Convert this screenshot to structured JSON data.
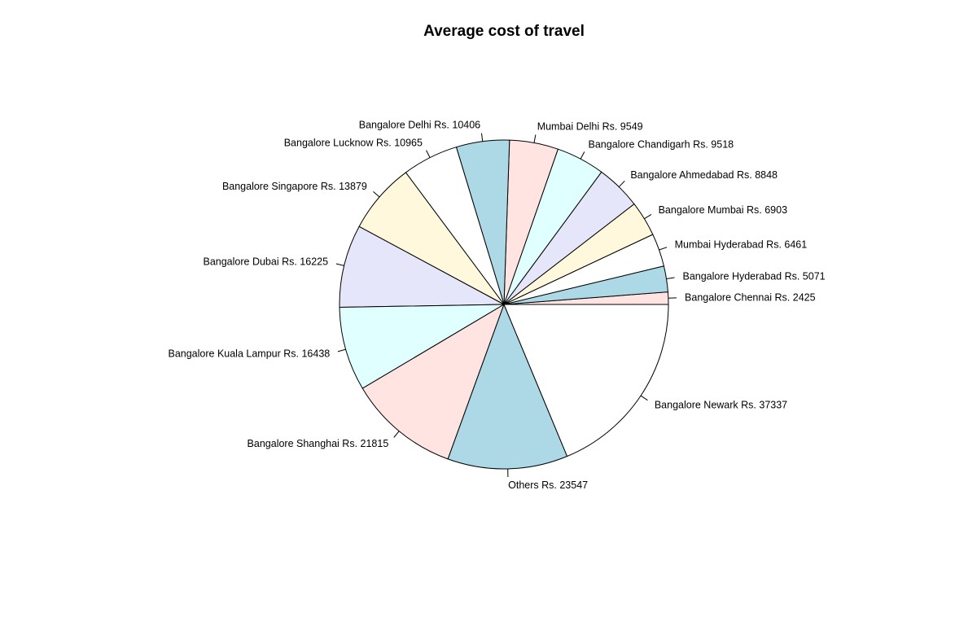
{
  "chart_data": {
    "type": "pie",
    "title": "Average cost of travel",
    "start": "3 o'clock",
    "direction": "counter-clockwise",
    "slices": [
      {
        "label": "Bangalore Chennai Rs. 2425",
        "category": "Bangalore Chennai",
        "value": 2425,
        "color": "#FFE4E1"
      },
      {
        "label": "Bangalore Hyderabad Rs. 5071",
        "category": "Bangalore Hyderabad",
        "value": 5071,
        "color": "#ADD8E6"
      },
      {
        "label": "Mumbai Hyderabad Rs. 6461",
        "category": "Mumbai Hyderabad",
        "value": 6461,
        "color": "#FFFFFF"
      },
      {
        "label": "Bangalore Mumbai Rs. 6903",
        "category": "Bangalore Mumbai",
        "value": 6903,
        "color": "#FFF8DC"
      },
      {
        "label": "Bangalore Ahmedabad Rs. 8848",
        "category": "Bangalore Ahmedabad",
        "value": 8848,
        "color": "#E6E6FA"
      },
      {
        "label": "Bangalore Chandigarh Rs. 9518",
        "category": "Bangalore Chandigarh",
        "value": 9518,
        "color": "#E0FFFF"
      },
      {
        "label": "Mumbai Delhi Rs. 9549",
        "category": "Mumbai Delhi",
        "value": 9549,
        "color": "#FFE4E1"
      },
      {
        "label": "Bangalore Delhi Rs. 10406",
        "category": "Bangalore Delhi",
        "value": 10406,
        "color": "#ADD8E6"
      },
      {
        "label": "Bangalore Lucknow Rs. 10965",
        "category": "Bangalore Lucknow",
        "value": 10965,
        "color": "#FFFFFF"
      },
      {
        "label": "Bangalore Singapore Rs. 13879",
        "category": "Bangalore Singapore",
        "value": 13879,
        "color": "#FFF8DC"
      },
      {
        "label": "Bangalore Dubai Rs. 16225",
        "category": "Bangalore Dubai",
        "value": 16225,
        "color": "#E6E6FA"
      },
      {
        "label": "Bangalore Kuala Lampur Rs. 16438",
        "category": "Bangalore Kuala Lampur",
        "value": 16438,
        "color": "#E0FFFF"
      },
      {
        "label": "Bangalore Shanghai Rs. 21815",
        "category": "Bangalore Shanghai",
        "value": 21815,
        "color": "#FFE4E1"
      },
      {
        "label": "Others Rs. 23547",
        "category": "Others",
        "value": 23547,
        "color": "#ADD8E6"
      },
      {
        "label": "Bangalore Newark Rs. 37337",
        "category": "Bangalore Newark",
        "value": 37337,
        "color": "#FFFFFF"
      }
    ]
  }
}
